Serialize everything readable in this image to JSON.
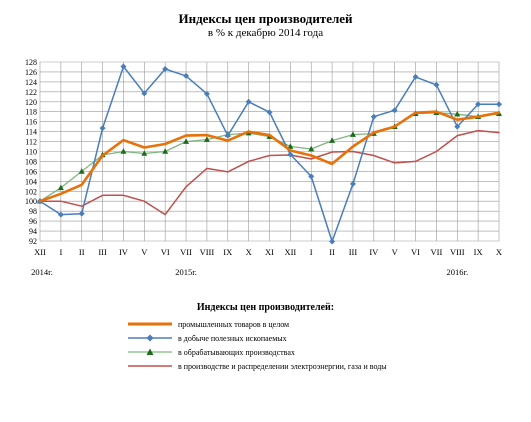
{
  "chart_data": {
    "type": "line",
    "title": "Индексы цен производителей",
    "subtitle": "в % к декабрю 2014 года",
    "categories": [
      "XII",
      "I",
      "II",
      "III",
      "IV",
      "V",
      "VI",
      "VII",
      "VIII",
      "IX",
      "X",
      "XI",
      "XII",
      "I",
      "II",
      "III",
      "IV",
      "V",
      "VI",
      "VII",
      "VIII",
      "IX",
      "X"
    ],
    "year_labels": [
      {
        "label": "2014г.",
        "index": 0
      },
      {
        "label": "2015г.",
        "index": 7
      },
      {
        "label": "2016г.",
        "index": 20
      }
    ],
    "ylim": [
      92,
      128
    ],
    "yticks": [
      92,
      94,
      96,
      98,
      100,
      102,
      104,
      106,
      108,
      110,
      112,
      114,
      116,
      118,
      120,
      122,
      124,
      126,
      128
    ],
    "grid": true,
    "legend_title": "Индексы цен производителей:",
    "series": [
      {
        "name": "промышленных товаров в целом",
        "color": "#e8710a",
        "width": 2.6,
        "marker": "none",
        "values": [
          100,
          101.5,
          103.3,
          109.2,
          112.3,
          110.8,
          111.5,
          113.2,
          113.3,
          112.2,
          114.0,
          113.3,
          110.2,
          109.2,
          107.5,
          111.0,
          113.8,
          115.0,
          117.8,
          118.0,
          116.4,
          117.0,
          117.8
        ]
      },
      {
        "name": "в добыче полезных ископаемых",
        "color": "#4a7ebb",
        "width": 1.5,
        "marker": "diamond",
        "values": [
          100,
          97.3,
          97.5,
          114.7,
          127.1,
          121.7,
          126.6,
          125.2,
          121.6,
          113.2,
          120.0,
          117.9,
          109.4,
          105.0,
          91.9,
          103.5,
          117.0,
          118.3,
          125.0,
          123.4,
          115.0,
          119.5,
          119.5
        ]
      },
      {
        "name": "в обрабатывающих производствах",
        "color": "#7fb67f",
        "width": 1.3,
        "marker": "triangle",
        "values": [
          100,
          102.7,
          106.0,
          109.3,
          110.0,
          109.6,
          110.0,
          112.0,
          112.4,
          113.4,
          113.7,
          113.0,
          111.0,
          110.5,
          112.2,
          113.4,
          113.6,
          115.0,
          117.6,
          117.8,
          117.5,
          117.0,
          117.6
        ]
      },
      {
        "name": "в производстве и распределении электроэнергии, газа и воды",
        "color": "#c0504d",
        "width": 1.5,
        "marker": "none",
        "values": [
          100,
          100.0,
          99.0,
          101.2,
          101.2,
          100.0,
          97.3,
          102.9,
          106.6,
          105.9,
          108.0,
          109.2,
          109.3,
          108.5,
          109.9,
          110.0,
          109.2,
          107.7,
          108.0,
          110.0,
          113.2,
          114.2,
          113.8
        ]
      }
    ]
  }
}
